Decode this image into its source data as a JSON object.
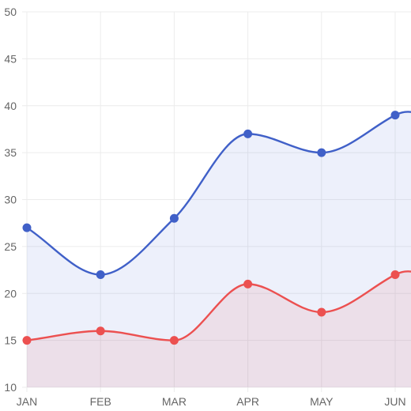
{
  "chart_data": {
    "type": "area",
    "categories": [
      "JAN",
      "FEB",
      "MAR",
      "APR",
      "MAY",
      "JUN"
    ],
    "series": [
      {
        "values": [
          27,
          22,
          28,
          37,
          35,
          39
        ],
        "color": "#4060c8",
        "fill": "rgba(80,110,220,0.10)"
      },
      {
        "values": [
          15,
          16,
          15,
          21,
          18,
          22
        ],
        "color": "#ec5050",
        "fill": "rgba(236,80,80,0.10)"
      }
    ],
    "ylim": [
      10,
      50
    ],
    "yticks": [
      "10",
      "15",
      "20",
      "25",
      "30",
      "35",
      "40",
      "45",
      "50"
    ],
    "grid": true,
    "legend": "none",
    "smooth": true,
    "title": "",
    "xlabel": "",
    "ylabel": ""
  }
}
